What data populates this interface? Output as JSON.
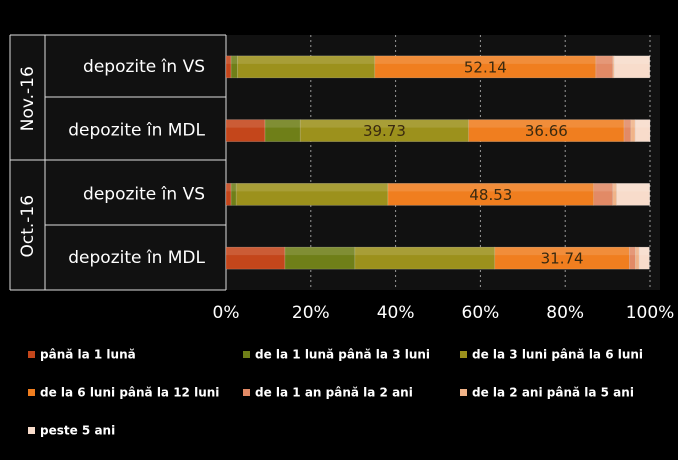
{
  "chart_data": {
    "type": "bar",
    "orientation": "horizontal",
    "stacked": true,
    "categories": [
      "depozite în VS",
      "depozite în MDL",
      "depozite în VS",
      "depozite în MDL"
    ],
    "groups": [
      {
        "label": "Nov.-16",
        "categories": [
          0,
          1
        ]
      },
      {
        "label": "Oct.-16",
        "categories": [
          2,
          3
        ]
      }
    ],
    "series": [
      {
        "name": "până la 1 lună",
        "color": "#c4461b",
        "values": [
          1.2,
          9.2,
          1.2,
          13.9
        ],
        "value_labels": [
          null,
          null,
          null,
          null
        ]
      },
      {
        "name": "de la 1 lună până la 3 luni",
        "color": "#6f7f18",
        "values": [
          1.5,
          8.3,
          1.2,
          16.5
        ],
        "value_labels": [
          null,
          null,
          null,
          null
        ]
      },
      {
        "name": "de la 3 luni până la 6 luni",
        "color": "#9c911c",
        "values": [
          32.4,
          39.73,
          35.8,
          33.0
        ],
        "value_labels": [
          null,
          "39.73",
          null,
          null
        ]
      },
      {
        "name": "de la 6 luni până la 12 luni",
        "color": "#f07e1f",
        "values": [
          52.14,
          36.66,
          48.53,
          31.74
        ],
        "value_labels": [
          "52.14",
          "36.66",
          "48.53",
          "31.74"
        ]
      },
      {
        "name": "de la 1 an până la 2 ani",
        "color": "#e28a66",
        "values": [
          4.0,
          1.6,
          4.5,
          1.4
        ],
        "value_labels": [
          null,
          null,
          null,
          null
        ]
      },
      {
        "name": "de la 2 ani până la 5 ani",
        "color": "#f0b388",
        "values": [
          0.3,
          1.0,
          0.9,
          0.9
        ],
        "value_labels": [
          null,
          null,
          null,
          null
        ]
      },
      {
        "name": "peste 5 ani",
        "color": "#f8dccb",
        "values": [
          8.4,
          3.5,
          7.8,
          2.4
        ],
        "value_labels": [
          null,
          null,
          null,
          null
        ]
      }
    ],
    "xlim": [
      0,
      100
    ],
    "xticks": [
      {
        "value": 0,
        "label": "0%"
      },
      {
        "value": 20,
        "label": "20%"
      },
      {
        "value": 40,
        "label": "40%"
      },
      {
        "value": 60,
        "label": "60%"
      },
      {
        "value": 80,
        "label": "80%"
      },
      {
        "value": 100,
        "label": "100%"
      }
    ],
    "grid": true
  }
}
